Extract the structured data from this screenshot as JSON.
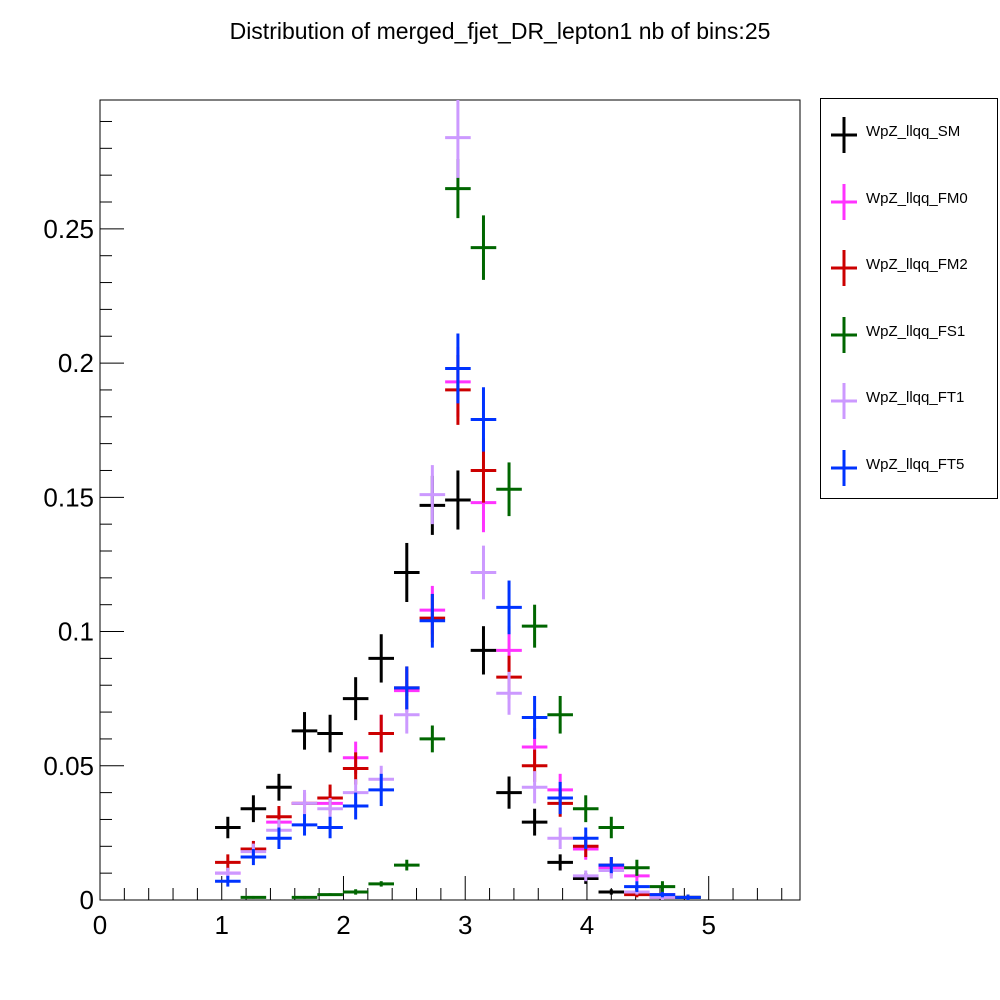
{
  "chart_data": {
    "type": "scatter",
    "title": "Distribution of merged_fjet_DR_lepton1 nb of bins:25",
    "xlabel": "",
    "ylabel": "",
    "xlim": [
      0,
      5.75
    ],
    "ylim": [
      0,
      0.298
    ],
    "x_ticks": [
      "0",
      "1",
      "2",
      "3",
      "4",
      "5"
    ],
    "y_ticks": [
      "0",
      "0.05",
      "0.1",
      "0.15",
      "0.2",
      "0.25"
    ],
    "bin_width": 0.21,
    "legend_position": "right, outside plot",
    "series": [
      {
        "name": "WpZ_llqq_SM",
        "color": "#000000",
        "points": [
          [
            1.05,
            0.027,
            0.004
          ],
          [
            1.26,
            0.034,
            0.005
          ],
          [
            1.47,
            0.042,
            0.005
          ],
          [
            1.68,
            0.063,
            0.007
          ],
          [
            1.89,
            0.062,
            0.007
          ],
          [
            2.1,
            0.075,
            0.008
          ],
          [
            2.31,
            0.09,
            0.009
          ],
          [
            2.52,
            0.122,
            0.011
          ],
          [
            2.73,
            0.147,
            0.011
          ],
          [
            2.94,
            0.149,
            0.011
          ],
          [
            3.15,
            0.093,
            0.009
          ],
          [
            3.36,
            0.04,
            0.006
          ],
          [
            3.57,
            0.029,
            0.005
          ],
          [
            3.78,
            0.014,
            0.003
          ],
          [
            3.99,
            0.008,
            0.002
          ],
          [
            4.2,
            0.003,
            0.001
          ]
        ]
      },
      {
        "name": "WpZ_llqq_FM0",
        "color": "#ff33ff",
        "points": [
          [
            1.05,
            0.01,
            0.002
          ],
          [
            1.26,
            0.019,
            0.003
          ],
          [
            1.47,
            0.029,
            0.004
          ],
          [
            1.68,
            0.036,
            0.004
          ],
          [
            1.89,
            0.036,
            0.004
          ],
          [
            2.1,
            0.053,
            0.006
          ],
          [
            2.31,
            0.062,
            0.007
          ],
          [
            2.52,
            0.078,
            0.008
          ],
          [
            2.73,
            0.108,
            0.009
          ],
          [
            2.94,
            0.193,
            0.013
          ],
          [
            3.15,
            0.148,
            0.011
          ],
          [
            3.36,
            0.093,
            0.009
          ],
          [
            3.57,
            0.057,
            0.007
          ],
          [
            3.78,
            0.041,
            0.006
          ],
          [
            3.99,
            0.019,
            0.004
          ],
          [
            4.2,
            0.012,
            0.003
          ],
          [
            4.41,
            0.009,
            0.002
          ],
          [
            4.62,
            0.002,
            0.001
          ]
        ]
      },
      {
        "name": "WpZ_llqq_FM2",
        "color": "#cc0000",
        "points": [
          [
            1.05,
            0.014,
            0.003
          ],
          [
            1.26,
            0.019,
            0.003
          ],
          [
            1.47,
            0.031,
            0.004
          ],
          [
            1.68,
            0.036,
            0.004
          ],
          [
            1.89,
            0.038,
            0.005
          ],
          [
            2.1,
            0.049,
            0.006
          ],
          [
            2.31,
            0.062,
            0.007
          ],
          [
            2.52,
            0.079,
            0.008
          ],
          [
            2.73,
            0.105,
            0.009
          ],
          [
            2.94,
            0.19,
            0.013
          ],
          [
            3.15,
            0.16,
            0.012
          ],
          [
            3.36,
            0.083,
            0.008
          ],
          [
            3.57,
            0.05,
            0.006
          ],
          [
            3.78,
            0.036,
            0.005
          ],
          [
            3.99,
            0.02,
            0.004
          ],
          [
            4.2,
            0.013,
            0.003
          ],
          [
            4.41,
            0.002,
            0.001
          ],
          [
            4.62,
            0.001,
            0.001
          ],
          [
            4.83,
            0.001,
            0.001
          ]
        ]
      },
      {
        "name": "WpZ_llqq_FS1",
        "color": "#006600",
        "points": [
          [
            1.26,
            0.001,
            0.0005
          ],
          [
            1.68,
            0.001,
            0.0005
          ],
          [
            1.89,
            0.002,
            0.0005
          ],
          [
            2.1,
            0.003,
            0.001
          ],
          [
            2.31,
            0.006,
            0.001
          ],
          [
            2.52,
            0.013,
            0.002
          ],
          [
            2.73,
            0.06,
            0.005
          ],
          [
            2.94,
            0.265,
            0.011
          ],
          [
            3.15,
            0.243,
            0.012
          ],
          [
            3.36,
            0.153,
            0.01
          ],
          [
            3.57,
            0.102,
            0.008
          ],
          [
            3.78,
            0.069,
            0.007
          ],
          [
            3.99,
            0.034,
            0.005
          ],
          [
            4.2,
            0.027,
            0.004
          ],
          [
            4.41,
            0.012,
            0.003
          ],
          [
            4.62,
            0.005,
            0.002
          ],
          [
            4.83,
            0.001,
            0.001
          ]
        ]
      },
      {
        "name": "WpZ_llqq_FT1",
        "color": "#cc99ff",
        "points": [
          [
            1.05,
            0.01,
            0.002
          ],
          [
            1.26,
            0.018,
            0.003
          ],
          [
            1.47,
            0.026,
            0.004
          ],
          [
            1.68,
            0.036,
            0.005
          ],
          [
            1.89,
            0.034,
            0.004
          ],
          [
            2.1,
            0.04,
            0.005
          ],
          [
            2.31,
            0.045,
            0.005
          ],
          [
            2.52,
            0.069,
            0.007
          ],
          [
            2.73,
            0.151,
            0.011
          ],
          [
            2.94,
            0.284,
            0.015
          ],
          [
            3.15,
            0.122,
            0.01
          ],
          [
            3.36,
            0.077,
            0.008
          ],
          [
            3.57,
            0.042,
            0.006
          ],
          [
            3.78,
            0.023,
            0.004
          ],
          [
            3.99,
            0.009,
            0.002
          ],
          [
            4.2,
            0.011,
            0.003
          ],
          [
            4.41,
            0.003,
            0.001
          ],
          [
            4.62,
            0.001,
            0.001
          ]
        ]
      },
      {
        "name": "WpZ_llqq_FT5",
        "color": "#0033ff",
        "points": [
          [
            1.05,
            0.007,
            0.002
          ],
          [
            1.26,
            0.016,
            0.003
          ],
          [
            1.47,
            0.023,
            0.004
          ],
          [
            1.68,
            0.028,
            0.004
          ],
          [
            1.89,
            0.027,
            0.004
          ],
          [
            2.1,
            0.035,
            0.005
          ],
          [
            2.31,
            0.041,
            0.006
          ],
          [
            2.52,
            0.079,
            0.008
          ],
          [
            2.73,
            0.104,
            0.01
          ],
          [
            2.94,
            0.198,
            0.013
          ],
          [
            3.15,
            0.179,
            0.012
          ],
          [
            3.36,
            0.109,
            0.01
          ],
          [
            3.57,
            0.068,
            0.008
          ],
          [
            3.78,
            0.038,
            0.006
          ],
          [
            3.99,
            0.023,
            0.004
          ],
          [
            4.2,
            0.013,
            0.003
          ],
          [
            4.41,
            0.005,
            0.002
          ],
          [
            4.62,
            0.002,
            0.001
          ],
          [
            4.83,
            0.001,
            0.001
          ]
        ]
      }
    ]
  }
}
